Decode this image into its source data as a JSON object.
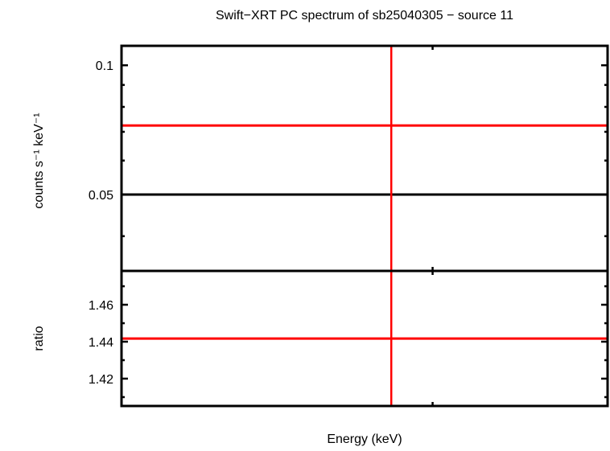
{
  "chart_data": {
    "type": "scatter",
    "title": "Swift−XRT PC spectrum of sb25040305 − source 11",
    "xlabel": "Energy (keV)",
    "colors": {
      "data": "#ff0000",
      "model": "#000000",
      "axes": "#000000"
    },
    "panels": [
      {
        "name": "spectrum",
        "ylabel": "counts s⁻¹ keV⁻¹",
        "yscale": "log",
        "ylim": [
          0.0332,
          0.111
        ],
        "yticks": [
          {
            "value": 0.1,
            "label": "0.1"
          },
          {
            "value": 0.05,
            "label": "0.05"
          }
        ],
        "yminor": [
          0.09,
          0.08,
          0.07,
          0.06,
          0.04
        ],
        "data_point": {
          "x": 0.555,
          "xerr_low": 0.555,
          "xerr_high": 0.445,
          "y": 0.0724
        },
        "model_line": {
          "y": 0.05
        }
      },
      {
        "name": "ratio",
        "ylabel": "ratio",
        "yscale": "linear",
        "ylim": [
          1.4052,
          1.4783
        ],
        "yticks": [
          {
            "value": 1.46,
            "label": "1.46"
          },
          {
            "value": 1.44,
            "label": "1.44"
          },
          {
            "value": 1.42,
            "label": "1.42"
          }
        ],
        "yminor": [
          1.47,
          1.45,
          1.43,
          1.41
        ],
        "data_point": {
          "x": 0.555,
          "y": 1.4417
        }
      }
    ],
    "xlim": [
      0,
      1
    ],
    "xminor": [
      0.64
    ]
  }
}
